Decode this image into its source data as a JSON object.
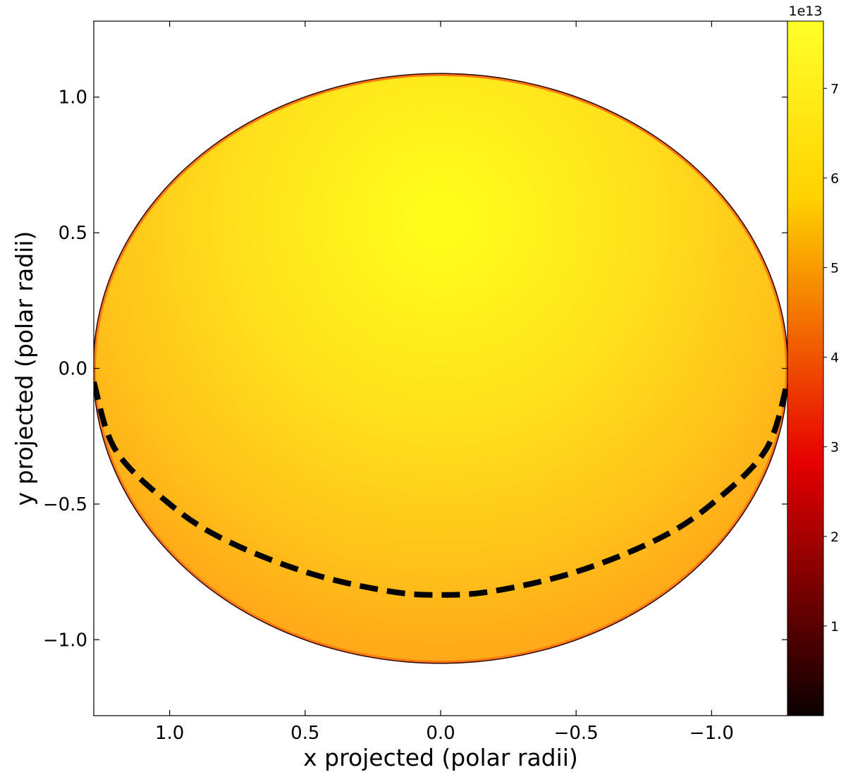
{
  "chart_data": {
    "type": "heatmap",
    "title": "",
    "xlabel": "x projected (polar radii)",
    "ylabel": "y projected (polar radii)",
    "xlim": [
      1.28,
      -1.28
    ],
    "ylim": [
      -1.28,
      1.28
    ],
    "x_inverted": true,
    "x_ticks": [
      1.0,
      0.5,
      0.0,
      -0.5,
      -1.0
    ],
    "x_tick_labels": [
      "1.0",
      "0.5",
      "0.0",
      "−0.5",
      "−1.0"
    ],
    "y_ticks": [
      -1.0,
      -0.5,
      0.0,
      0.5,
      1.0
    ],
    "y_tick_labels": [
      "−1.0",
      "−0.5",
      "0.0",
      "0.5",
      "1.0"
    ],
    "grid": false,
    "disk": {
      "center": [
        0.0,
        0.0
      ],
      "equatorial_radius": 1.28,
      "polar_radius": 1.085,
      "peak_location": [
        0.0,
        0.55
      ],
      "peak_value": 76000000000000.0,
      "limb_value": 52000000000000.0
    },
    "equator_curve": {
      "style": "dashed",
      "color": "#000000",
      "points": [
        [
          1.28,
          -0.05
        ],
        [
          1.2,
          -0.3
        ],
        [
          1.0,
          -0.5
        ],
        [
          0.8,
          -0.63
        ],
        [
          0.5,
          -0.75
        ],
        [
          0.2,
          -0.82
        ],
        [
          0.0,
          -0.835
        ],
        [
          -0.2,
          -0.82
        ],
        [
          -0.5,
          -0.75
        ],
        [
          -0.8,
          -0.63
        ],
        [
          -1.0,
          -0.5
        ],
        [
          -1.2,
          -0.3
        ],
        [
          -1.28,
          -0.05
        ]
      ]
    },
    "colorbar": {
      "colormap": "hot",
      "range": [
        0,
        7.75
      ],
      "ticks": [
        1,
        2,
        3,
        4,
        5,
        6,
        7
      ],
      "tick_labels": [
        "1",
        "2",
        "3",
        "4",
        "5",
        "6",
        "7"
      ],
      "offset_label": "1e13"
    }
  }
}
